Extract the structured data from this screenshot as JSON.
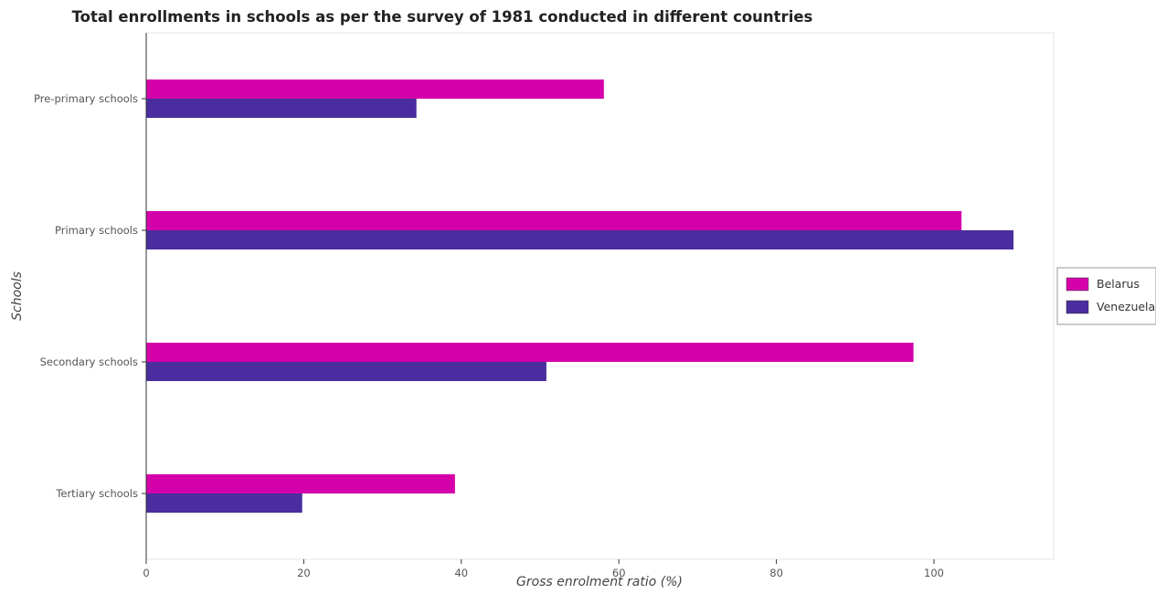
{
  "chart_data": {
    "type": "bar",
    "orientation": "horizontal",
    "title": "Total enrollments in schools as per the survey of 1981 conducted in different countries",
    "xlabel": "Gross enrolment ratio (%)",
    "ylabel": "Schools",
    "categories": [
      "Pre-primary schools",
      "Primary schools",
      "Secondary schools",
      "Tertiary schools"
    ],
    "series": [
      {
        "name": "Belarus",
        "color": "#d400aa",
        "values": [
          58.1,
          103.5,
          97.4,
          39.2
        ]
      },
      {
        "name": "Venezuela",
        "color": "#4a2d9e",
        "values": [
          34.3,
          110.1,
          50.8,
          19.8
        ]
      }
    ],
    "xlim": [
      0,
      115
    ],
    "xticks": [
      0,
      20,
      40,
      60,
      80,
      100
    ],
    "legend_position": "right",
    "grid": false
  }
}
